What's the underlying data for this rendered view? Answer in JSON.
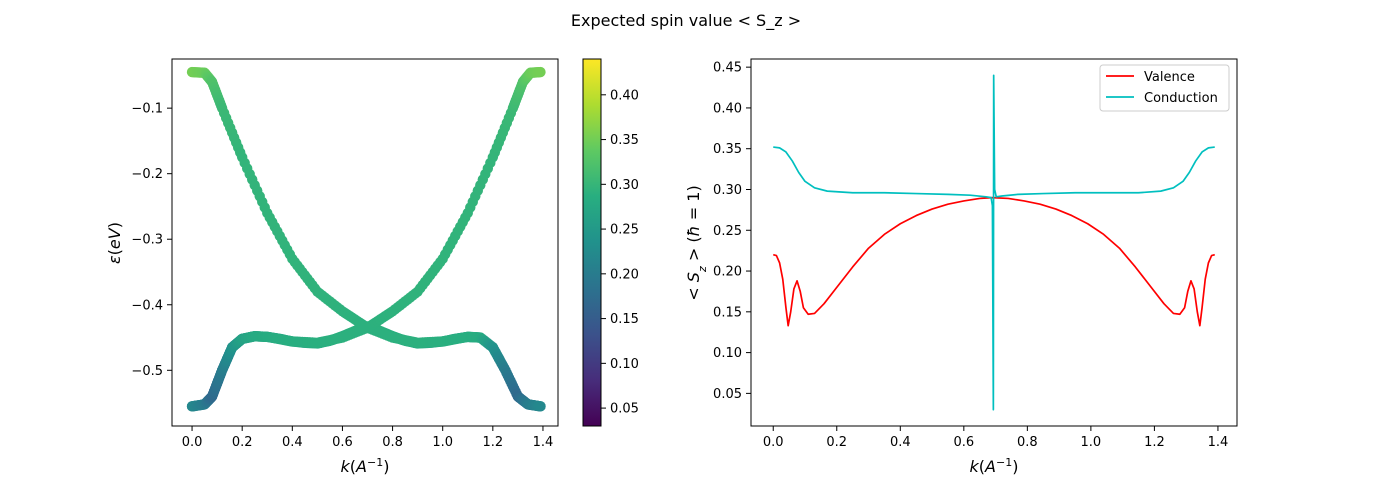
{
  "figure": {
    "title": "Expected spin value  < S_z >"
  },
  "chart_data": [
    {
      "type": "scatter",
      "name": "band-structure",
      "xlabel": "k(A^{-1})",
      "ylabel": "ε(eV)",
      "xlim": [
        -0.08,
        1.46
      ],
      "ylim": [
        -0.585,
        -0.025
      ],
      "xticks": [
        "0.0",
        "0.2",
        "0.4",
        "0.6",
        "0.8",
        "1.0",
        "1.2",
        "1.4"
      ],
      "yticks": [
        "−0.5",
        "−0.4",
        "−0.3",
        "−0.2",
        "−0.1"
      ],
      "colorbar": {
        "colormap": "viridis",
        "range": [
          0.03,
          0.44
        ],
        "ticks": [
          "0.05",
          "0.10",
          "0.15",
          "0.20",
          "0.25",
          "0.30",
          "0.35",
          "0.40"
        ]
      },
      "series": [
        {
          "role": "valence",
          "points": [
            [
              0.0,
              -0.555
            ],
            [
              0.05,
              -0.552
            ],
            [
              0.08,
              -0.54
            ],
            [
              0.12,
              -0.5
            ],
            [
              0.16,
              -0.465
            ],
            [
              0.2,
              -0.452
            ],
            [
              0.25,
              -0.448
            ],
            [
              0.3,
              -0.449
            ],
            [
              0.35,
              -0.452
            ],
            [
              0.4,
              -0.456
            ],
            [
              0.45,
              -0.458
            ],
            [
              0.5,
              -0.459
            ],
            [
              0.55,
              -0.455
            ],
            [
              0.6,
              -0.448
            ],
            [
              0.65,
              -0.44
            ],
            [
              0.7,
              -0.433
            ],
            [
              0.75,
              -0.44
            ],
            [
              0.8,
              -0.448
            ],
            [
              0.85,
              -0.455
            ],
            [
              0.9,
              -0.459
            ],
            [
              0.95,
              -0.458
            ],
            [
              1.0,
              -0.456
            ],
            [
              1.05,
              -0.452
            ],
            [
              1.1,
              -0.449
            ],
            [
              1.15,
              -0.45
            ],
            [
              1.2,
              -0.465
            ],
            [
              1.25,
              -0.5
            ],
            [
              1.3,
              -0.54
            ],
            [
              1.34,
              -0.552
            ],
            [
              1.39,
              -0.555
            ]
          ],
          "spin": [
            0.22,
            0.2,
            0.16,
            0.17,
            0.2,
            0.22,
            0.24,
            0.255,
            0.265,
            0.272,
            0.278,
            0.282,
            0.286,
            0.288,
            0.29,
            0.29,
            0.29,
            0.288,
            0.286,
            0.282,
            0.278,
            0.272,
            0.265,
            0.255,
            0.24,
            0.2,
            0.17,
            0.16,
            0.2,
            0.22
          ]
        },
        {
          "role": "conduction-descending",
          "points": [
            [
              0.0,
              -0.045
            ],
            [
              0.05,
              -0.046
            ],
            [
              0.08,
              -0.06
            ],
            [
              0.12,
              -0.1
            ],
            [
              0.2,
              -0.175
            ],
            [
              0.3,
              -0.26
            ],
            [
              0.4,
              -0.33
            ],
            [
              0.5,
              -0.38
            ],
            [
              0.6,
              -0.41
            ],
            [
              0.7,
              -0.435
            ],
            [
              0.8,
              -0.45
            ],
            [
              0.9,
              -0.458
            ],
            [
              1.0,
              -0.456
            ],
            [
              1.1,
              -0.449
            ],
            [
              1.15,
              -0.45
            ],
            [
              1.2,
              -0.465
            ],
            [
              1.25,
              -0.5
            ],
            [
              1.3,
              -0.54
            ],
            [
              1.34,
              -0.552
            ],
            [
              1.39,
              -0.555
            ]
          ],
          "spin": [
            0.352,
            0.345,
            0.325,
            0.305,
            0.297,
            0.296,
            0.295,
            0.294,
            0.292,
            0.29,
            0.29,
            0.29,
            0.288,
            0.286,
            0.282,
            0.24,
            0.2,
            0.17,
            0.2,
            0.22
          ]
        },
        {
          "role": "conduction-ascending",
          "points": [
            [
              0.0,
              -0.555
            ],
            [
              0.05,
              -0.552
            ],
            [
              0.08,
              -0.54
            ],
            [
              0.12,
              -0.5
            ],
            [
              0.16,
              -0.465
            ],
            [
              0.2,
              -0.452
            ],
            [
              0.25,
              -0.448
            ],
            [
              0.3,
              -0.449
            ],
            [
              0.4,
              -0.456
            ],
            [
              0.5,
              -0.458
            ],
            [
              0.6,
              -0.45
            ],
            [
              0.7,
              -0.435
            ],
            [
              0.8,
              -0.41
            ],
            [
              0.9,
              -0.38
            ],
            [
              1.0,
              -0.33
            ],
            [
              1.1,
              -0.26
            ],
            [
              1.2,
              -0.175
            ],
            [
              1.28,
              -0.1
            ],
            [
              1.32,
              -0.06
            ],
            [
              1.35,
              -0.046
            ],
            [
              1.39,
              -0.045
            ]
          ],
          "spin": [
            0.22,
            0.2,
            0.17,
            0.2,
            0.24,
            0.265,
            0.278,
            0.282,
            0.286,
            0.288,
            0.29,
            0.29,
            0.292,
            0.294,
            0.295,
            0.296,
            0.297,
            0.305,
            0.325,
            0.345,
            0.352
          ]
        }
      ]
    },
    {
      "type": "line",
      "name": "spin-expectation",
      "xlabel": "k(A^{-1})",
      "ylabel": "< S_z > (ħ = 1)",
      "xlim": [
        -0.07,
        1.46
      ],
      "ylim": [
        0.01,
        0.46
      ],
      "xticks": [
        "0.0",
        "0.2",
        "0.4",
        "0.6",
        "0.8",
        "1.0",
        "1.2",
        "1.4"
      ],
      "yticks": [
        "0.05",
        "0.10",
        "0.15",
        "0.20",
        "0.25",
        "0.30",
        "0.35",
        "0.40",
        "0.45"
      ],
      "legend_position": "top-right",
      "series": [
        {
          "name": "Valence",
          "color": "#ff0000",
          "points": [
            [
              0.0,
              0.22
            ],
            [
              0.01,
              0.219
            ],
            [
              0.02,
              0.21
            ],
            [
              0.03,
              0.19
            ],
            [
              0.04,
              0.155
            ],
            [
              0.047,
              0.133
            ],
            [
              0.055,
              0.15
            ],
            [
              0.065,
              0.178
            ],
            [
              0.075,
              0.188
            ],
            [
              0.085,
              0.175
            ],
            [
              0.095,
              0.155
            ],
            [
              0.11,
              0.147
            ],
            [
              0.13,
              0.148
            ],
            [
              0.16,
              0.16
            ],
            [
              0.2,
              0.18
            ],
            [
              0.25,
              0.205
            ],
            [
              0.3,
              0.228
            ],
            [
              0.35,
              0.245
            ],
            [
              0.4,
              0.258
            ],
            [
              0.45,
              0.268
            ],
            [
              0.5,
              0.276
            ],
            [
              0.55,
              0.282
            ],
            [
              0.6,
              0.286
            ],
            [
              0.65,
              0.289
            ],
            [
              0.69,
              0.29
            ],
            [
              0.74,
              0.289
            ],
            [
              0.79,
              0.286
            ],
            [
              0.84,
              0.282
            ],
            [
              0.89,
              0.276
            ],
            [
              0.94,
              0.268
            ],
            [
              0.99,
              0.258
            ],
            [
              1.04,
              0.245
            ],
            [
              1.09,
              0.228
            ],
            [
              1.14,
              0.205
            ],
            [
              1.19,
              0.18
            ],
            [
              1.23,
              0.16
            ],
            [
              1.26,
              0.148
            ],
            [
              1.28,
              0.147
            ],
            [
              1.295,
              0.155
            ],
            [
              1.305,
              0.175
            ],
            [
              1.315,
              0.188
            ],
            [
              1.325,
              0.178
            ],
            [
              1.335,
              0.15
            ],
            [
              1.343,
              0.133
            ],
            [
              1.35,
              0.155
            ],
            [
              1.36,
              0.19
            ],
            [
              1.37,
              0.21
            ],
            [
              1.38,
              0.219
            ],
            [
              1.39,
              0.22
            ]
          ]
        },
        {
          "name": "Conduction",
          "color": "#00bfbf",
          "points": [
            [
              0.0,
              0.352
            ],
            [
              0.02,
              0.351
            ],
            [
              0.04,
              0.346
            ],
            [
              0.06,
              0.335
            ],
            [
              0.08,
              0.321
            ],
            [
              0.1,
              0.31
            ],
            [
              0.13,
              0.302
            ],
            [
              0.17,
              0.298
            ],
            [
              0.25,
              0.296
            ],
            [
              0.35,
              0.296
            ],
            [
              0.45,
              0.295
            ],
            [
              0.55,
              0.294
            ],
            [
              0.62,
              0.293
            ],
            [
              0.67,
              0.291
            ],
            [
              0.686,
              0.29
            ],
            [
              0.69,
              0.28
            ],
            [
              0.693,
              0.03
            ],
            [
              0.694,
              0.44
            ],
            [
              0.697,
              0.3
            ],
            [
              0.702,
              0.291
            ],
            [
              0.72,
              0.292
            ],
            [
              0.77,
              0.294
            ],
            [
              0.85,
              0.295
            ],
            [
              0.95,
              0.296
            ],
            [
              1.05,
              0.296
            ],
            [
              1.15,
              0.296
            ],
            [
              1.22,
              0.298
            ],
            [
              1.26,
              0.302
            ],
            [
              1.29,
              0.31
            ],
            [
              1.31,
              0.321
            ],
            [
              1.33,
              0.335
            ],
            [
              1.35,
              0.346
            ],
            [
              1.37,
              0.351
            ],
            [
              1.39,
              0.352
            ]
          ]
        }
      ]
    }
  ]
}
